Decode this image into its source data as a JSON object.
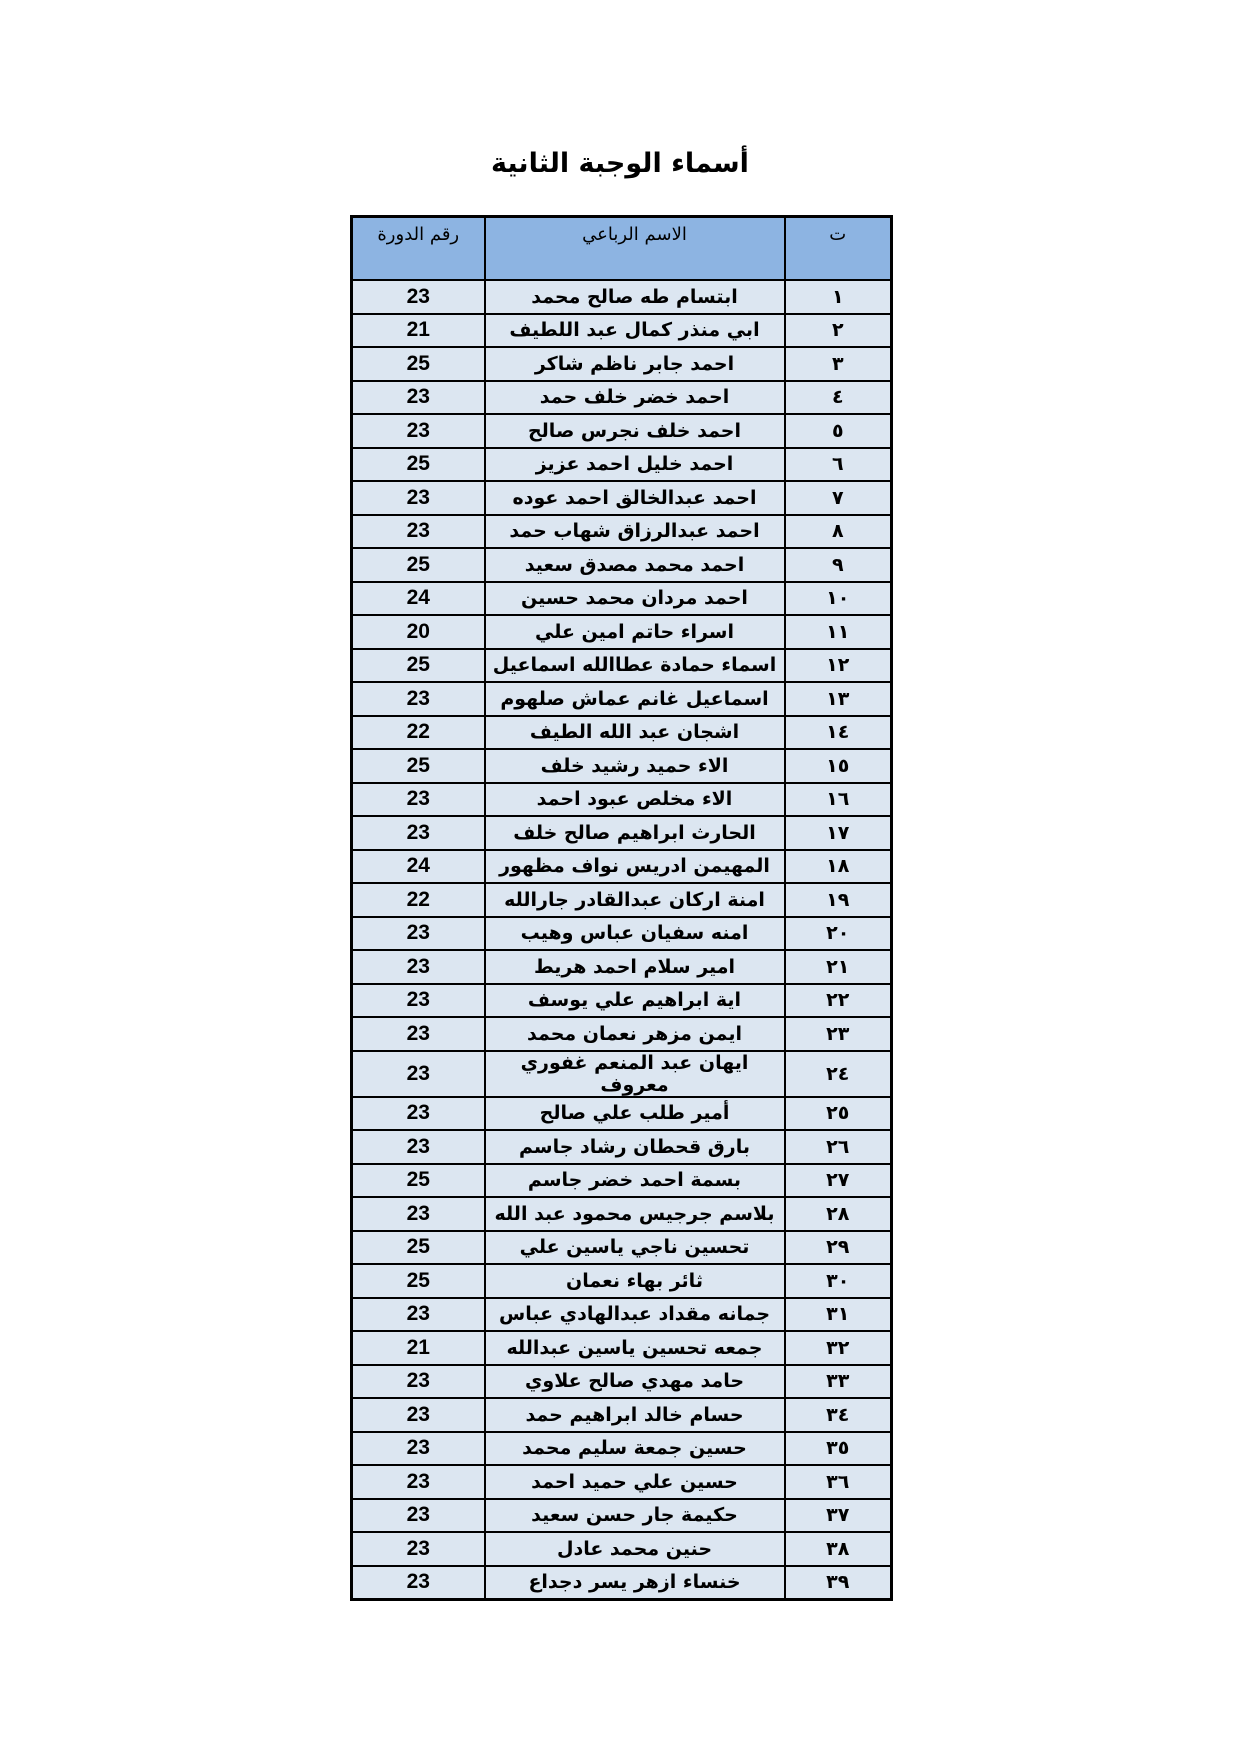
{
  "header": {
    "title": "أسماء الوجبة الثانية"
  },
  "table": {
    "columns": [
      "ت",
      "الاسم الرباعي",
      "رقم الدورة"
    ],
    "rows": [
      [
        "١",
        "ابتسام طه صالح محمد",
        23
      ],
      [
        "٢",
        "ابي منذر كمال عبد اللطيف",
        21
      ],
      [
        "٣",
        "احمد جابر ناظم شاكر",
        25
      ],
      [
        "٤",
        "احمد خضر خلف حمد",
        23
      ],
      [
        "٥",
        "احمد خلف نجرس صالح",
        23
      ],
      [
        "٦",
        "احمد خليل احمد عزيز",
        25
      ],
      [
        "٧",
        "احمد عبدالخالق احمد عوده",
        23
      ],
      [
        "٨",
        "احمد عبدالرزاق شهاب حمد",
        23
      ],
      [
        "٩",
        "احمد محمد مصدق سعيد",
        25
      ],
      [
        "١٠",
        "احمد مردان محمد حسين",
        24
      ],
      [
        "١١",
        "اسراء حاتم امين علي",
        20
      ],
      [
        "١٢",
        "اسماء حمادة عطاالله اسماعيل",
        25
      ],
      [
        "١٣",
        "اسماعيل غانم عماش صلهوم",
        23
      ],
      [
        "١٤",
        "اشجان عبد الله الطيف",
        22
      ],
      [
        "١٥",
        "الاء حميد رشيد خلف",
        25
      ],
      [
        "١٦",
        "الاء مخلص عبود احمد",
        23
      ],
      [
        "١٧",
        "الحارث ابراهيم صالح خلف",
        23
      ],
      [
        "١٨",
        "المهيمن ادريس نواف مظهور",
        24
      ],
      [
        "١٩",
        "امنة اركان عبدالقادر جارالله",
        22
      ],
      [
        "٢٠",
        "امنه سفيان عباس وهيب",
        23
      ],
      [
        "٢١",
        "امير سلام احمد هريط",
        23
      ],
      [
        "٢٢",
        "اية ابراهيم علي يوسف",
        23
      ],
      [
        "٢٣",
        "ايمن مزهر نعمان محمد",
        23
      ],
      [
        "٢٤",
        "ايهان عبد المنعم غفوري معروف",
        23
      ],
      [
        "٢٥",
        "أمير طلب علي صالح",
        23
      ],
      [
        "٢٦",
        "بارق قحطان رشاد جاسم",
        23
      ],
      [
        "٢٧",
        "بسمة احمد خضر جاسم",
        25
      ],
      [
        "٢٨",
        "بلاسم جرجيس محمود عبد الله",
        23
      ],
      [
        "٢٩",
        "تحسين ناجي ياسين علي",
        25
      ],
      [
        "٣٠",
        "ثائر بهاء نعمان",
        25
      ],
      [
        "٣١",
        "جمانه مقداد عبدالهادي عباس",
        23
      ],
      [
        "٣٢",
        "جمعه تحسين ياسين عبدالله",
        21
      ],
      [
        "٣٣",
        "حامد مهدي صالح علاوي",
        23
      ],
      [
        "٣٤",
        "حسام خالد ابراهيم حمد",
        23
      ],
      [
        "٣٥",
        "حسين جمعة سليم محمد",
        23
      ],
      [
        "٣٦",
        "حسين علي حميد احمد",
        23
      ],
      [
        "٣٧",
        "حكيمة جار حسن سعيد",
        23
      ],
      [
        "٣٨",
        "حنين محمد عادل",
        23
      ],
      [
        "٣٩",
        "خنساء ازهر يسر دجداع",
        23
      ]
    ]
  }
}
